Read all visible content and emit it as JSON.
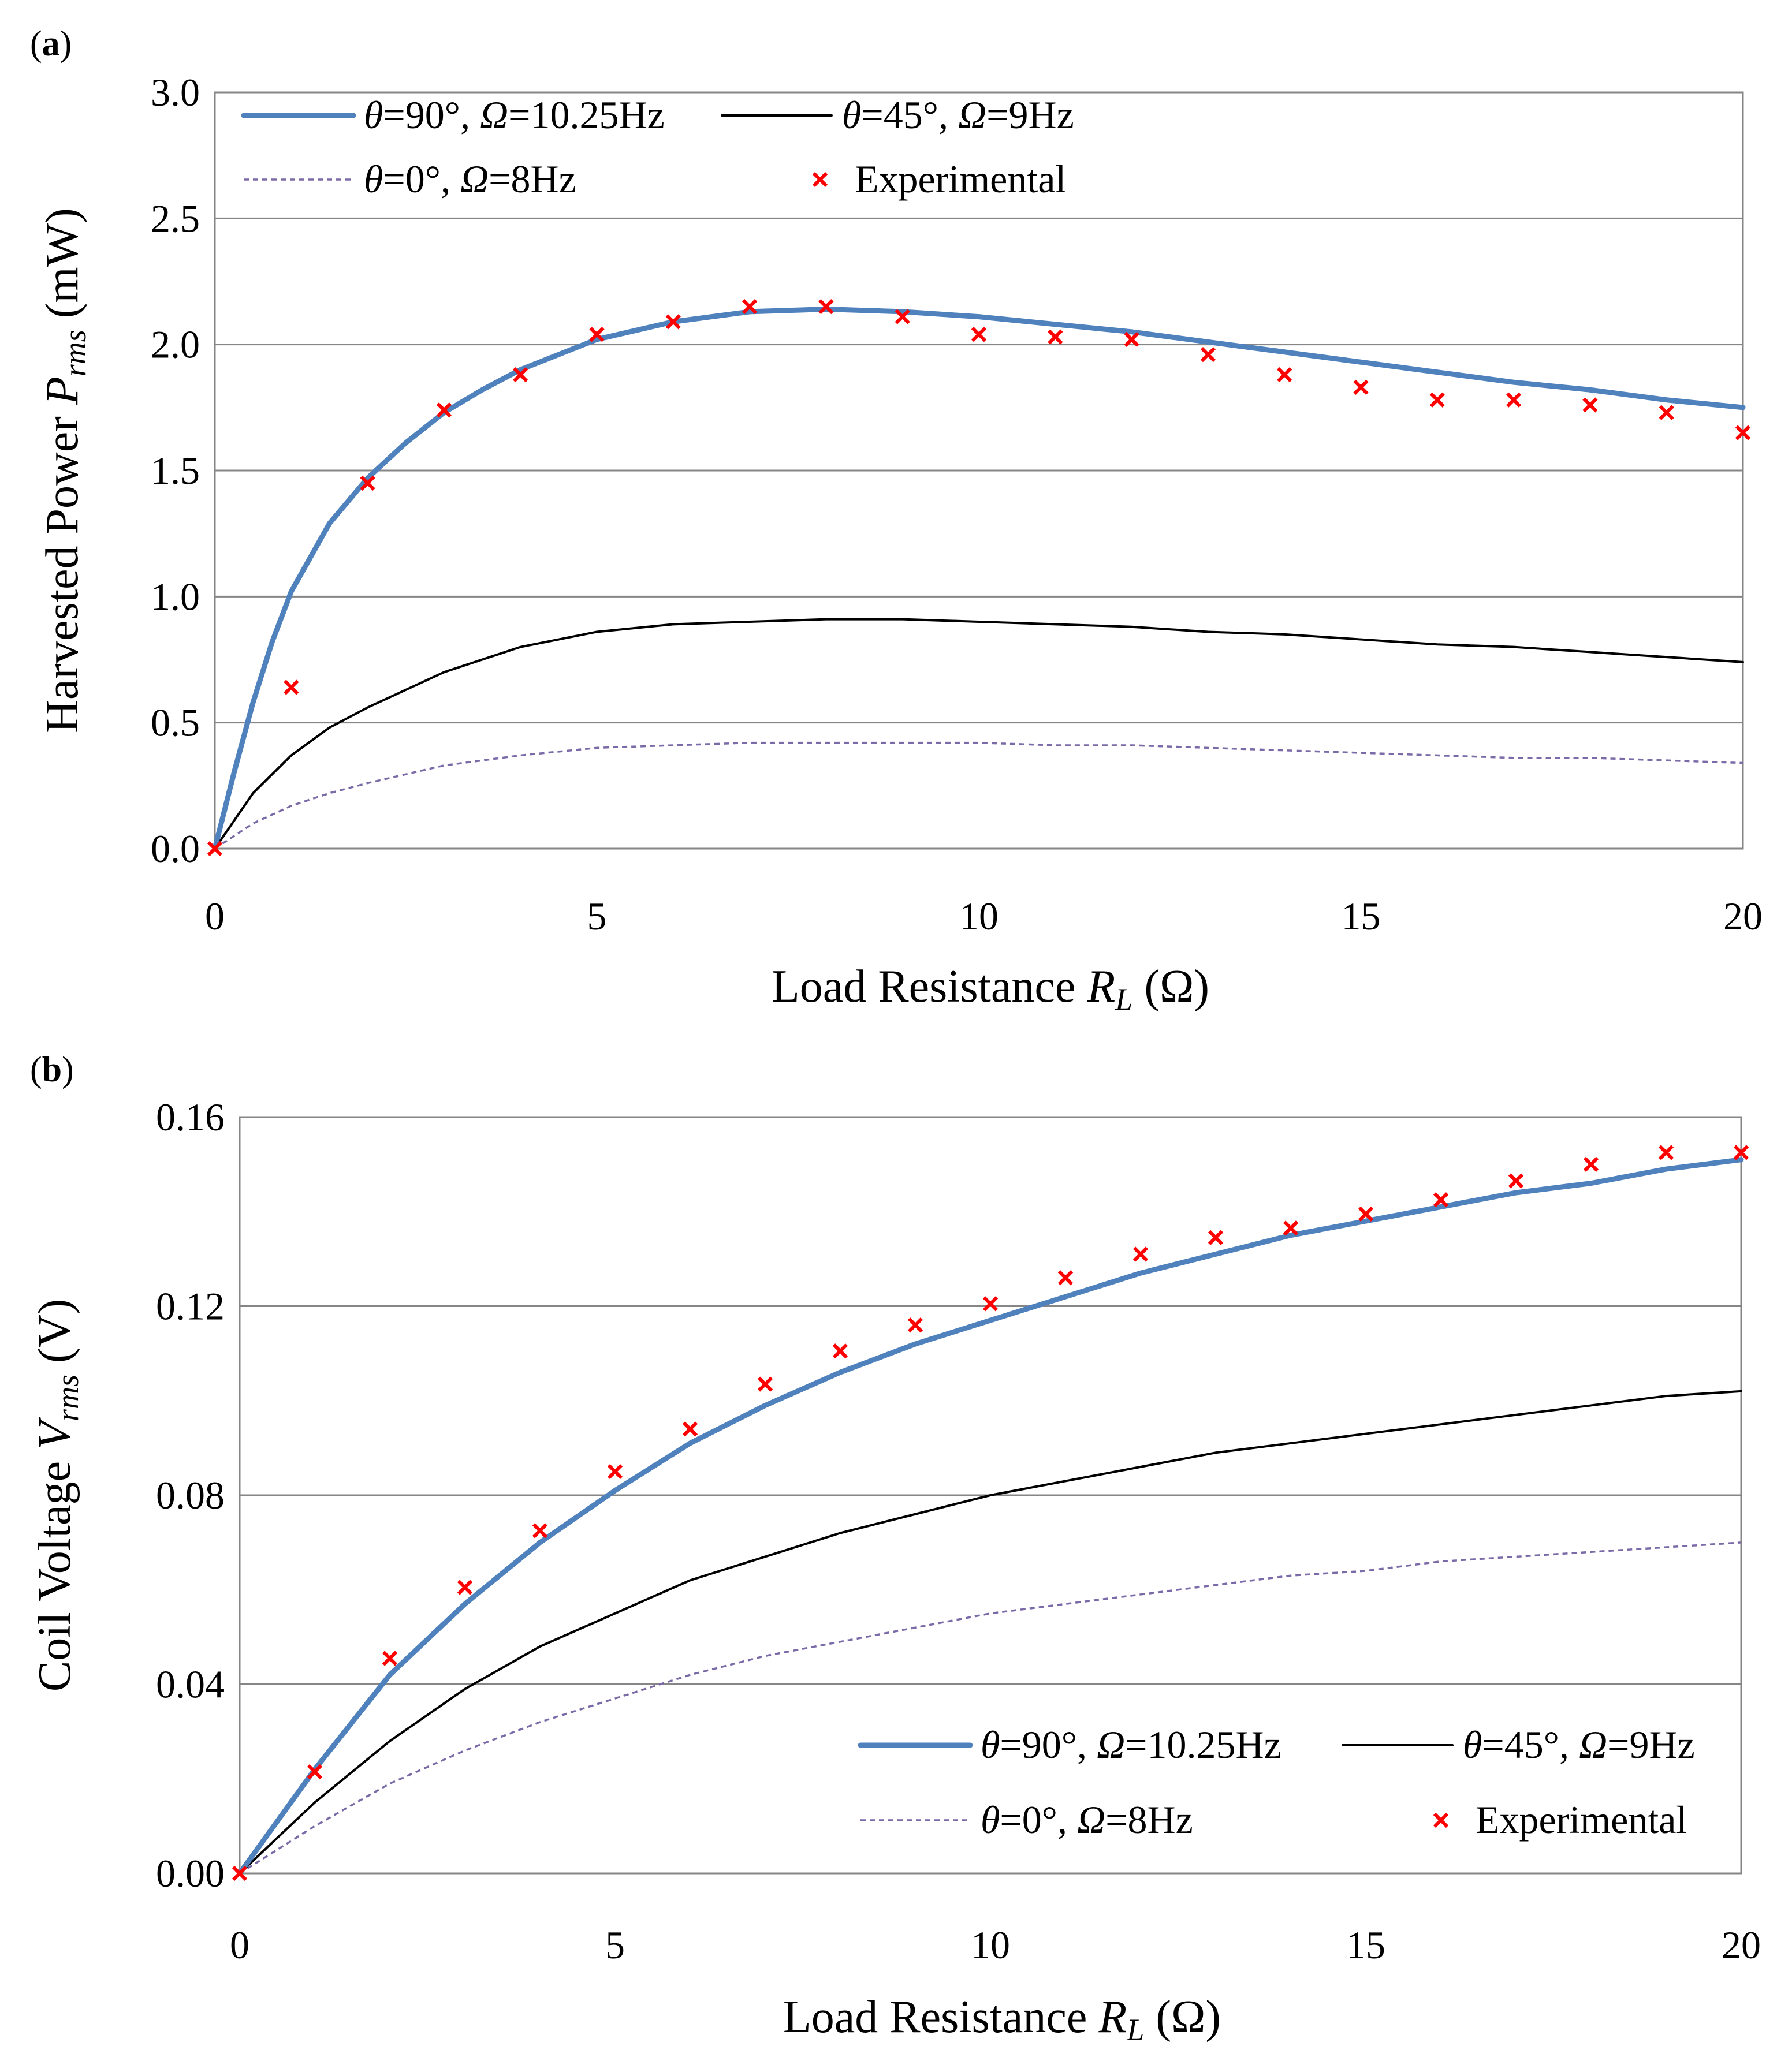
{
  "chart_data": [
    {
      "panel_label": "(a)",
      "type": "line",
      "xlabel_prefix": "Load Resistance ",
      "xlabel_symbol": "R",
      "xlabel_sub": "L",
      "xlabel_suffix": " (Ω)",
      "ylabel_prefix": "Harvested Power ",
      "ylabel_symbol": "P",
      "ylabel_sub": "rms",
      "ylabel_suffix": " (mW)",
      "xlim": [
        0,
        20
      ],
      "ylim": [
        0,
        3
      ],
      "xticks": [
        0,
        5,
        10,
        15,
        20
      ],
      "xtick_labels": [
        "0",
        "5",
        "10",
        "15",
        "20"
      ],
      "yticks": [
        0,
        0.5,
        1,
        1.5,
        2,
        2.5,
        3
      ],
      "ytick_labels": [
        "0.0",
        "0.5",
        "1.0",
        "1.5",
        "2.0",
        "2.5",
        "3.0"
      ],
      "grid": "horizontal",
      "legend_position": "top",
      "series": [
        {
          "name": "θ=90°, Ω=10.25Hz",
          "legend": {
            "a": "θ",
            "b": "=90°, ",
            "c": "Ω",
            "d": "=10.25Hz"
          },
          "style": "thick",
          "color": "#4f81bd",
          "x": [
            0,
            0.25,
            0.5,
            0.75,
            1,
            1.5,
            2,
            2.5,
            3,
            3.5,
            4,
            5,
            6,
            7,
            8,
            9,
            10,
            11,
            12,
            13,
            14,
            15,
            16,
            17,
            18,
            19,
            20
          ],
          "y": [
            0,
            0.3,
            0.58,
            0.82,
            1.02,
            1.29,
            1.47,
            1.61,
            1.73,
            1.82,
            1.9,
            2.02,
            2.09,
            2.13,
            2.14,
            2.13,
            2.11,
            2.08,
            2.05,
            2.01,
            1.97,
            1.93,
            1.89,
            1.85,
            1.82,
            1.78,
            1.75
          ]
        },
        {
          "name": "θ=45°, Ω=9Hz",
          "legend": {
            "a": "θ",
            "b": "=45°, ",
            "c": "Ω",
            "d": "=9Hz"
          },
          "style": "thin",
          "color": "#000000",
          "x": [
            0,
            0.5,
            1,
            1.5,
            2,
            3,
            4,
            5,
            6,
            7,
            8,
            9,
            10,
            11,
            12,
            13,
            14,
            15,
            16,
            17,
            18,
            19,
            20
          ],
          "y": [
            0,
            0.22,
            0.37,
            0.48,
            0.56,
            0.7,
            0.8,
            0.86,
            0.89,
            0.9,
            0.91,
            0.91,
            0.9,
            0.89,
            0.88,
            0.86,
            0.85,
            0.83,
            0.81,
            0.8,
            0.78,
            0.76,
            0.74
          ]
        },
        {
          "name": "θ=0°, Ω=8Hz",
          "legend": {
            "a": "θ",
            "b": "=0°, ",
            "c": "Ω",
            "d": "=8Hz"
          },
          "style": "dashed",
          "color": "#7b6aa8",
          "x": [
            0,
            0.5,
            1,
            1.5,
            2,
            3,
            4,
            5,
            6,
            7,
            8,
            9,
            10,
            11,
            12,
            13,
            14,
            15,
            16,
            17,
            18,
            19,
            20
          ],
          "y": [
            0,
            0.1,
            0.17,
            0.22,
            0.26,
            0.33,
            0.37,
            0.4,
            0.41,
            0.42,
            0.42,
            0.42,
            0.42,
            0.41,
            0.41,
            0.4,
            0.39,
            0.38,
            0.37,
            0.36,
            0.36,
            0.35,
            0.34
          ]
        },
        {
          "name": "Experimental",
          "legend": {
            "a": "",
            "b": "Experimental",
            "c": "",
            "d": ""
          },
          "style": "marker",
          "color": "#ff0000",
          "x": [
            0,
            1,
            2,
            3,
            4,
            5,
            6,
            7,
            8,
            9,
            10,
            11,
            12,
            13,
            14,
            15,
            16,
            17,
            18,
            19,
            20
          ],
          "y": [
            0,
            0.64,
            1.45,
            1.74,
            1.88,
            2.04,
            2.09,
            2.15,
            2.15,
            2.11,
            2.04,
            2.03,
            2.02,
            1.96,
            1.88,
            1.83,
            1.78,
            1.78,
            1.76,
            1.73,
            1.65
          ]
        }
      ]
    },
    {
      "panel_label": "(b)",
      "type": "line",
      "xlabel_prefix": "Load Resistance ",
      "xlabel_symbol": "R",
      "xlabel_sub": "L",
      "xlabel_suffix": " (Ω)",
      "ylabel_prefix": "Coil Voltage ",
      "ylabel_symbol": "V",
      "ylabel_sub": "rms",
      "ylabel_suffix": " (V)",
      "xlim": [
        0,
        20
      ],
      "ylim": [
        0,
        0.16
      ],
      "xticks": [
        0,
        5,
        10,
        15,
        20
      ],
      "xtick_labels": [
        "0",
        "5",
        "10",
        "15",
        "20"
      ],
      "yticks": [
        0,
        0.04,
        0.08,
        0.12,
        0.16
      ],
      "ytick_labels": [
        "0.00",
        "0.04",
        "0.08",
        "0.12",
        "0.16"
      ],
      "grid": "horizontal",
      "legend_position": "bottom-right",
      "series": [
        {
          "name": "θ=90°, Ω=10.25Hz",
          "legend": {
            "a": "θ",
            "b": "=90°, ",
            "c": "Ω",
            "d": "=10.25Hz"
          },
          "style": "thick",
          "color": "#4f81bd",
          "x": [
            0,
            1,
            2,
            3,
            4,
            5,
            6,
            7,
            8,
            9,
            10,
            11,
            12,
            13,
            14,
            15,
            16,
            17,
            18,
            19,
            20
          ],
          "y": [
            0,
            0.022,
            0.042,
            0.057,
            0.07,
            0.081,
            0.091,
            0.099,
            0.106,
            0.112,
            0.117,
            0.122,
            0.127,
            0.131,
            0.135,
            0.138,
            0.141,
            0.144,
            0.146,
            0.149,
            0.151
          ]
        },
        {
          "name": "θ=45°, Ω=9Hz",
          "legend": {
            "a": "θ",
            "b": "=45°, ",
            "c": "Ω",
            "d": "=9Hz"
          },
          "style": "thin",
          "color": "#000000",
          "x": [
            0,
            1,
            2,
            3,
            4,
            5,
            6,
            7,
            8,
            9,
            10,
            11,
            12,
            13,
            14,
            15,
            16,
            17,
            18,
            19,
            20
          ],
          "y": [
            0,
            0.015,
            0.028,
            0.039,
            0.048,
            0.055,
            0.062,
            0.067,
            0.072,
            0.076,
            0.08,
            0.083,
            0.086,
            0.089,
            0.091,
            0.093,
            0.095,
            0.097,
            0.099,
            0.101,
            0.102
          ]
        },
        {
          "name": "θ=0°, Ω=8Hz",
          "legend": {
            "a": "θ",
            "b": "=0°, ",
            "c": "Ω",
            "d": "=8Hz"
          },
          "style": "dashed",
          "color": "#7b6aa8",
          "x": [
            0,
            1,
            2,
            3,
            4,
            5,
            6,
            7,
            8,
            9,
            10,
            11,
            12,
            13,
            14,
            15,
            16,
            17,
            18,
            19,
            20
          ],
          "y": [
            0,
            0.01,
            0.019,
            0.026,
            0.032,
            0.037,
            0.042,
            0.046,
            0.049,
            0.052,
            0.055,
            0.057,
            0.059,
            0.061,
            0.063,
            0.064,
            0.066,
            0.067,
            0.068,
            0.069,
            0.07
          ]
        },
        {
          "name": "Experimental",
          "legend": {
            "a": "",
            "b": "Experimental",
            "c": "",
            "d": ""
          },
          "style": "marker",
          "color": "#ff0000",
          "x": [
            0,
            1,
            2,
            3,
            4,
            5,
            6,
            7,
            8,
            9,
            10,
            11,
            12,
            13,
            14,
            15,
            16,
            17,
            18,
            19,
            20
          ],
          "y": [
            0,
            0.0215,
            0.0455,
            0.0605,
            0.0725,
            0.085,
            0.094,
            0.1035,
            0.1105,
            0.116,
            0.1205,
            0.126,
            0.131,
            0.1345,
            0.1365,
            0.1395,
            0.1425,
            0.1465,
            0.15,
            0.1525,
            0.1525
          ]
        }
      ]
    }
  ]
}
